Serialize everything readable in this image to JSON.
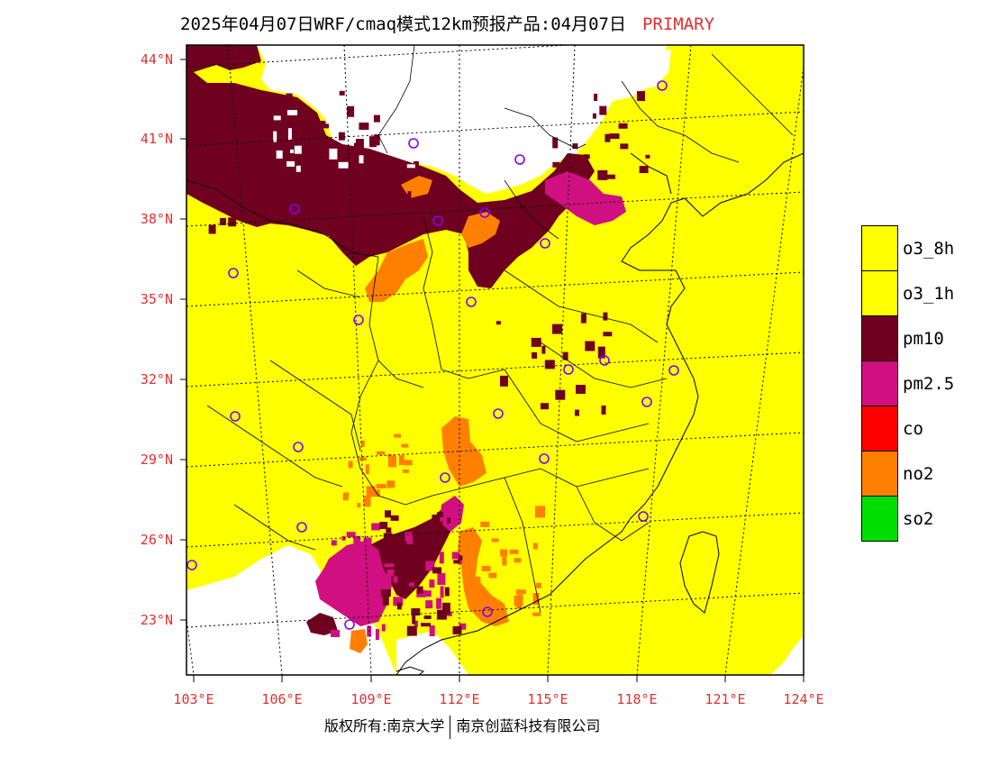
{
  "header": {
    "title": "2025年04月07日WRF/cmaq模式12km预报产品:04月07日",
    "tag": "PRIMARY"
  },
  "map": {
    "lat_labels": [
      "44°N",
      "41°N",
      "38°N",
      "35°N",
      "32°N",
      "29°N",
      "26°N",
      "23°N"
    ],
    "lon_labels": [
      "103°E",
      "106°E",
      "109°E",
      "112°E",
      "115°E",
      "118°E",
      "121°E",
      "124°E"
    ],
    "colors": {
      "o3": "#ffff00",
      "pm10": "#700020",
      "pm25": "#d01080",
      "no2": "#ff8000",
      "clean": "#ffffff",
      "station": "#8000ff"
    }
  },
  "legend": {
    "items": [
      {
        "label": "o3_8h",
        "color": "#ffff00"
      },
      {
        "label": "o3_1h",
        "color": "#ffff00"
      },
      {
        "label": "pm10",
        "color": "#700020"
      },
      {
        "label": "pm2.5",
        "color": "#d01080"
      },
      {
        "label": "co",
        "color": "#ff0000"
      },
      {
        "label": "no2",
        "color": "#ff8000"
      },
      {
        "label": "so2",
        "color": "#00dd00"
      }
    ]
  },
  "footer": {
    "left": "版权所有:南京大学",
    "right": "南京创蓝科技有限公司"
  }
}
